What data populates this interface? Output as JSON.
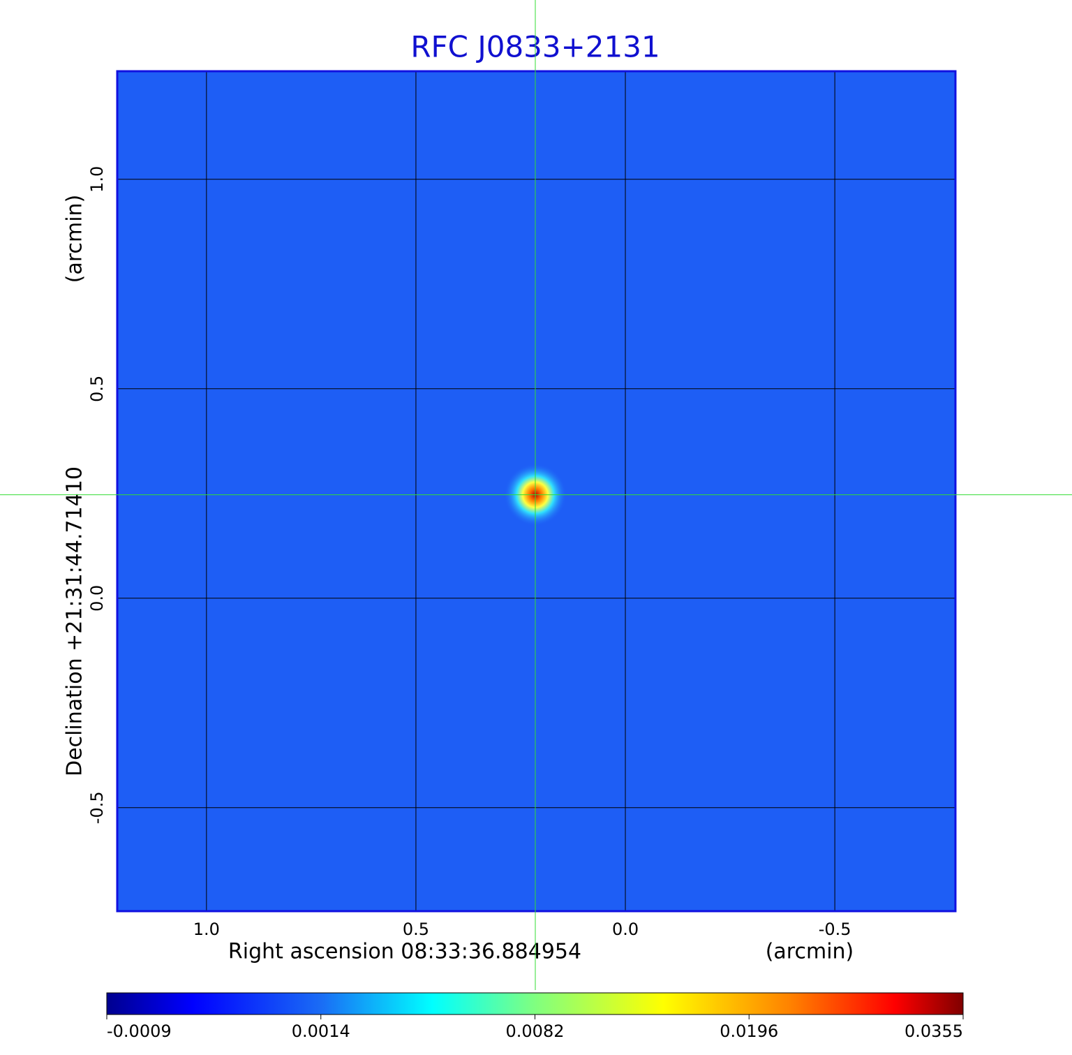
{
  "chart_data": {
    "type": "image",
    "title": "RFC J0833+2131",
    "xlabel": "Right ascension  08:33:36.884954",
    "xunit": "(arcmin)",
    "ylabel": "Declination  +21:31:44.71410",
    "yunit": "(arcmin)",
    "xlim": [
      1.213,
      -0.788
    ],
    "ylim": [
      -0.747,
      1.258
    ],
    "xticks": [
      {
        "value": 1,
        "label": "1.0"
      },
      0.5,
      {
        "value": 0,
        "label": "0.0"
      },
      -0.5
    ],
    "yticks": [
      -0.5,
      {
        "value": 0,
        "label": "0.0"
      },
      0.5,
      {
        "value": 1,
        "label": "1.0"
      }
    ],
    "grid": true,
    "crosshair": {
      "x": 0.215,
      "y": 0.247,
      "color": "#33dd33"
    },
    "colorbar_ticks": [
      -0.0009,
      0.0014,
      0.0082,
      0.0196,
      0.0355
    ]
  }
}
